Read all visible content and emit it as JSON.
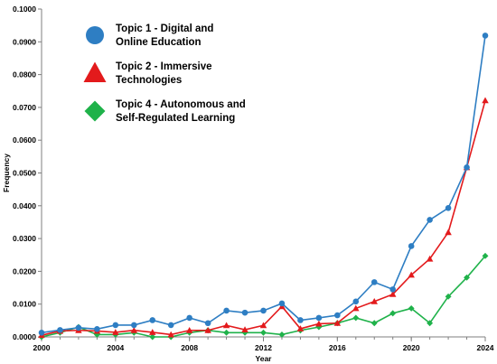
{
  "chart_data": {
    "type": "line",
    "xlabel": "Year",
    "ylabel": "Frequency",
    "xlim": [
      2000,
      2024
    ],
    "ylim": [
      0,
      0.1
    ],
    "x_ticks": [
      "2000",
      "2004",
      "2008",
      "2012",
      "2016",
      "2020",
      "2024"
    ],
    "y_ticks": [
      "0.0000",
      "0.0100",
      "0.0200",
      "0.0300",
      "0.0400",
      "0.0500",
      "0.0600",
      "0.0700",
      "0.0800",
      "0.0900",
      "0.1000"
    ],
    "grid": false,
    "legend_position": "top-left",
    "x": [
      2000,
      2001,
      2002,
      2003,
      2004,
      2005,
      2006,
      2007,
      2008,
      2009,
      2010,
      2011,
      2012,
      2013,
      2014,
      2015,
      2016,
      2017,
      2018,
      2019,
      2020,
      2021,
      2022,
      2023,
      2024
    ],
    "series": [
      {
        "name_lines": [
          "Topic 1 - Digital and",
          "Online Education"
        ],
        "color": "#2e7ec3",
        "marker": "circle",
        "values": [
          0.0013,
          0.0021,
          0.0028,
          0.0024,
          0.0036,
          0.0036,
          0.0051,
          0.0036,
          0.0058,
          0.0042,
          0.008,
          0.0074,
          0.008,
          0.0102,
          0.0051,
          0.0058,
          0.0066,
          0.0108,
          0.0167,
          0.0145,
          0.0277,
          0.0357,
          0.0393,
          0.0517,
          0.0919
        ]
      },
      {
        "name_lines": [
          "Topic 2 - Immersive",
          "Technologies"
        ],
        "color": "#e31a1c",
        "marker": "triangle",
        "values": [
          0.0005,
          0.0018,
          0.002,
          0.0018,
          0.0014,
          0.002,
          0.0014,
          0.0007,
          0.002,
          0.002,
          0.0035,
          0.0022,
          0.0035,
          0.0093,
          0.0025,
          0.004,
          0.0042,
          0.0087,
          0.0108,
          0.013,
          0.0189,
          0.0238,
          0.0319,
          0.0517,
          0.0721
        ]
      },
      {
        "name_lines": [
          "Topic 4 - Autonomous and",
          "Self-Regulated Learning"
        ],
        "color": "#1fb24a",
        "marker": "diamond",
        "values": [
          0.0,
          0.0013,
          0.003,
          0.0007,
          0.0007,
          0.0013,
          0.0,
          0.0,
          0.0013,
          0.002,
          0.0013,
          0.0013,
          0.0013,
          0.0007,
          0.002,
          0.003,
          0.0042,
          0.0058,
          0.0042,
          0.0072,
          0.0087,
          0.0042,
          0.0123,
          0.0181,
          0.0247
        ]
      }
    ]
  }
}
